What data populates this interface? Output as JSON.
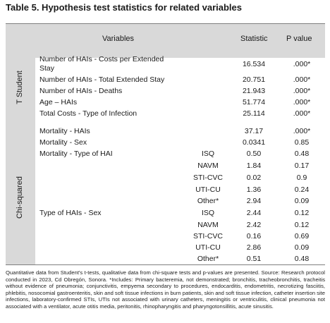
{
  "title": "Table 5. Hypothesis test statistics for related variables",
  "headers": {
    "variables": "Variables",
    "statistic": "Statistic",
    "pvalue": "P value"
  },
  "groups": {
    "t_student": "T Student",
    "chi_squared": "Chi-squared"
  },
  "rows": [
    {
      "variable": "Number of HAIs - Costs per Extended Stay",
      "statistic": "16.534",
      "p": ".000*"
    },
    {
      "variable": "Number of HAIs - Total Extended Stay",
      "statistic": "20.751",
      "p": ".000*"
    },
    {
      "variable": "Number of HAIs - Deaths",
      "statistic": "21.943",
      "p": ".000*"
    },
    {
      "variable": "Age – HAIs",
      "statistic": "51.774",
      "p": ".000*"
    },
    {
      "variable": "Total Costs - Type of Infection",
      "statistic": "25.114",
      "p": ".000*"
    },
    {
      "variable": "Mortality - HAIs",
      "statistic": "37.17",
      "p": ".000*"
    },
    {
      "variable": "Mortality - Sex",
      "statistic": "0.0341",
      "p": "0.85"
    },
    {
      "variable": "Mortality - Type of HAI",
      "sub": "ISQ",
      "statistic": "0.50",
      "p": "0.48"
    },
    {
      "sub": "NAVM",
      "statistic": "1.84",
      "p": "0.17"
    },
    {
      "sub": "STI-CVC",
      "statistic": "0.02",
      "p": "0.9"
    },
    {
      "sub": "UTI-CU",
      "statistic": "1.36",
      "p": "0.24"
    },
    {
      "sub": "Other*",
      "statistic": "2.94",
      "p": "0.09"
    },
    {
      "variable": "Type of HAIs - Sex",
      "sub": "ISQ",
      "statistic": "2.44",
      "p": "0.12"
    },
    {
      "sub": "NAVM",
      "statistic": "2.42",
      "p": "0.12"
    },
    {
      "sub": "STI-CVC",
      "statistic": "0.16",
      "p": "0.69"
    },
    {
      "sub": "UTI-CU",
      "statistic": "2.86",
      "p": "0.09"
    },
    {
      "sub": "Other*",
      "statistic": "0.51",
      "p": "0.48"
    }
  ],
  "footnote": "Quantitative data from Student's t-tests, qualitative data from chi-square tests and p-values are presented. Source: Research protocol conducted in 2023, Cd Obregón, Sonora. *Includes: Primary bacteremia, not demonstrated; bronchitis, tracheobronchitis, tracheitis without evidence of pneumonia; conjunctivitis, empyema secondary to procedures, endocarditis, endometritis, necrotizing fasciitis, phlebitis, nosocomial gastroenteritis, skin and soft tissue infections in burn patients, skin and soft tissue infection, catheter insertion site infections, laboratory-confirmed STIs, UTIs not associated with urinary catheters, meningitis or ventriculitis, clinical pneumonia not associated with a ventilator, acute otitis media, peritonitis, rhinopharyngitis and pharyngotonsillitis, acute sinusitis."
}
